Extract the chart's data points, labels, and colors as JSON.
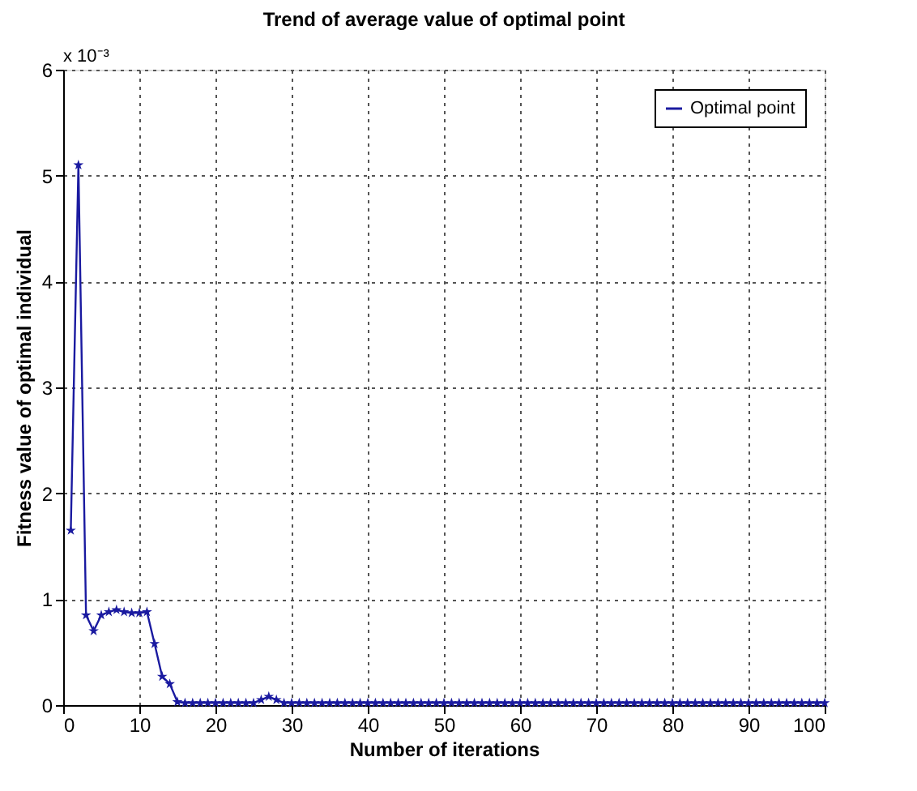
{
  "chart_data": {
    "type": "line",
    "title": "Trend of average value of optimal point",
    "xlabel": "Number of iterations",
    "ylabel": "Fitness value of optimal individual",
    "annotations": [
      "x 10⁻³"
    ],
    "x": [
      1,
      2,
      3,
      4,
      5,
      6,
      7,
      8,
      9,
      10,
      11,
      12,
      13,
      14,
      15,
      16,
      17,
      18,
      19,
      20,
      21,
      22,
      23,
      24,
      25,
      26,
      27,
      28,
      29,
      30,
      31,
      32,
      33,
      34,
      35,
      36,
      37,
      38,
      39,
      40,
      41,
      42,
      43,
      44,
      45,
      46,
      47,
      48,
      49,
      50,
      51,
      52,
      53,
      54,
      55,
      56,
      57,
      58,
      59,
      60,
      61,
      62,
      63,
      64,
      65,
      66,
      67,
      68,
      69,
      70,
      71,
      72,
      73,
      74,
      75,
      76,
      77,
      78,
      79,
      80,
      81,
      82,
      83,
      84,
      85,
      86,
      87,
      88,
      89,
      90,
      91,
      92,
      93,
      94,
      95,
      96,
      97,
      98,
      99,
      100
    ],
    "series": [
      {
        "name": "Optimal point",
        "color": "#1a1aa0",
        "values": [
          1.65,
          5.1,
          0.85,
          0.7,
          0.85,
          0.88,
          0.9,
          0.88,
          0.87,
          0.87,
          0.88,
          0.58,
          0.27,
          0.2,
          0.03,
          0.02,
          0.02,
          0.02,
          0.02,
          0.02,
          0.02,
          0.02,
          0.02,
          0.02,
          0.02,
          0.05,
          0.08,
          0.05,
          0.02,
          0.02,
          0.02,
          0.02,
          0.02,
          0.02,
          0.02,
          0.02,
          0.02,
          0.02,
          0.02,
          0.02,
          0.02,
          0.02,
          0.02,
          0.02,
          0.02,
          0.02,
          0.02,
          0.02,
          0.02,
          0.02,
          0.02,
          0.02,
          0.02,
          0.02,
          0.02,
          0.02,
          0.02,
          0.02,
          0.02,
          0.02,
          0.02,
          0.02,
          0.02,
          0.02,
          0.02,
          0.02,
          0.02,
          0.02,
          0.02,
          0.02,
          0.02,
          0.02,
          0.02,
          0.02,
          0.02,
          0.02,
          0.02,
          0.02,
          0.02,
          0.02,
          0.02,
          0.02,
          0.02,
          0.02,
          0.02,
          0.02,
          0.02,
          0.02,
          0.02,
          0.02,
          0.02,
          0.02,
          0.02,
          0.02,
          0.02,
          0.02,
          0.02,
          0.02,
          0.02,
          0.02
        ]
      }
    ],
    "xlim": [
      0,
      100
    ],
    "xticks": [
      0,
      10,
      20,
      30,
      40,
      50,
      60,
      70,
      80,
      90,
      100
    ],
    "ylim": [
      0,
      6
    ],
    "yticks": [
      0,
      1,
      2,
      3,
      4,
      5,
      6
    ],
    "grid": true,
    "legend": "top right",
    "marker": "star",
    "line_style": "solid"
  }
}
